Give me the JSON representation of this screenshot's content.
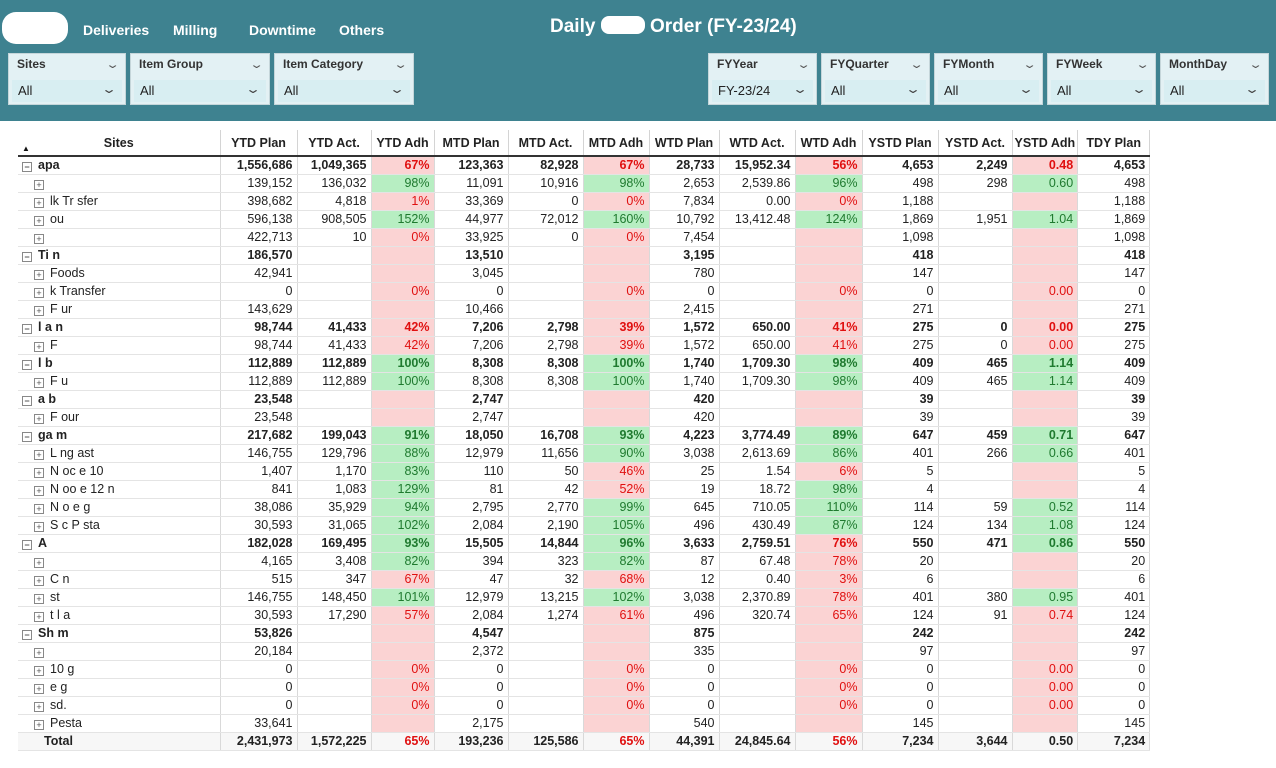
{
  "nav": {
    "deliveries": "Deliveries",
    "milling": "Milling",
    "downtime": "Downtime",
    "others": "Others"
  },
  "title": {
    "left": "Daily ",
    "right": " Order (FY-23/24)"
  },
  "slicers": {
    "sites": {
      "label": "Sites",
      "value": "All"
    },
    "item_group": {
      "label": "Item Group",
      "value": "All"
    },
    "item_category": {
      "label": "Item Category",
      "value": "All"
    },
    "fy_year": {
      "label": "FYYear",
      "value": "FY-23/24"
    },
    "fy_quarter": {
      "label": "FYQuarter",
      "value": "All"
    },
    "fy_month": {
      "label": "FYMonth",
      "value": "All"
    },
    "fy_week": {
      "label": "FYWeek",
      "value": "All"
    },
    "month_day": {
      "label": "MonthDay",
      "value": "All"
    }
  },
  "table": {
    "columns": [
      "Sites",
      "YTD Plan",
      "YTD Act.",
      "YTD Adh",
      "MTD Plan",
      "MTD Act.",
      "MTD Adh",
      "WTD Plan",
      "WTD Act.",
      "WTD Adh",
      "YSTD Plan",
      "YSTD Act.",
      "YSTD Adh",
      "TDY Plan"
    ],
    "rows": [
      {
        "level": "parent",
        "label": "  apa",
        "c": [
          "1,556,686",
          "1,049,365",
          "67%",
          "123,363",
          "82,928",
          "67%",
          "28,733",
          "15,952.34",
          "56%",
          "4,653",
          "2,249",
          "0.48",
          "4,653"
        ],
        "s": [
          "",
          "",
          "red",
          "",
          "",
          "red",
          "",
          "",
          "red",
          "",
          "",
          "pink",
          ""
        ]
      },
      {
        "level": "child",
        "label": "",
        "c": [
          "139,152",
          "136,032",
          "98%",
          "11,091",
          "10,916",
          "98%",
          "2,653",
          "2,539.86",
          "96%",
          "498",
          "298",
          "0.60",
          "498"
        ],
        "s": [
          "",
          "",
          "green",
          "",
          "",
          "green",
          "",
          "",
          "green",
          "",
          "",
          "green",
          ""
        ]
      },
      {
        "level": "child",
        "label": "lk Tr  sfer",
        "c": [
          "398,682",
          "4,818",
          "1%",
          "33,369",
          "0",
          "0%",
          "7,834",
          "0.00",
          "0%",
          "1,188",
          "",
          "",
          "1,188"
        ],
        "s": [
          "",
          "",
          "red",
          "",
          "",
          "red",
          "",
          "",
          "red",
          "",
          "",
          "pink",
          ""
        ]
      },
      {
        "level": "child",
        "label": "  ou",
        "c": [
          "596,138",
          "908,505",
          "152%",
          "44,977",
          "72,012",
          "160%",
          "10,792",
          "13,412.48",
          "124%",
          "1,869",
          "1,951",
          "1.04",
          "1,869"
        ],
        "s": [
          "",
          "",
          "green",
          "",
          "",
          "green",
          "",
          "",
          "green",
          "",
          "",
          "green",
          ""
        ]
      },
      {
        "level": "child",
        "label": "  ",
        "c": [
          "422,713",
          "10",
          "0%",
          "33,925",
          "0",
          "0%",
          "7,454",
          "",
          "",
          "1,098",
          "",
          "",
          "1,098"
        ],
        "s": [
          "",
          "",
          "red",
          "",
          "",
          "red",
          "",
          "",
          "pink",
          "",
          "",
          "pink",
          ""
        ]
      },
      {
        "level": "parent",
        "label": "Ti   n",
        "c": [
          "186,570",
          "",
          "",
          "13,510",
          "",
          "",
          "3,195",
          "",
          "",
          "418",
          "",
          "",
          "418"
        ],
        "s": [
          "",
          "",
          "pink",
          "",
          "",
          "pink",
          "",
          "",
          "pink",
          "",
          "",
          "pink",
          ""
        ]
      },
      {
        "level": "child",
        "label": "Foods",
        "c": [
          "42,941",
          "",
          "",
          "3,045",
          "",
          "",
          "780",
          "",
          "",
          "147",
          "",
          "",
          "147"
        ],
        "s": [
          "",
          "",
          "pink",
          "",
          "",
          "pink",
          "",
          "",
          "pink",
          "",
          "",
          "pink",
          ""
        ]
      },
      {
        "level": "child",
        "label": "  k Transfer",
        "c": [
          "0",
          "",
          "0%",
          "0",
          "",
          "0%",
          "0",
          "",
          "0%",
          "0",
          "",
          "0.00",
          "0"
        ],
        "s": [
          "",
          "",
          "red",
          "",
          "",
          "red",
          "",
          "",
          "red",
          "",
          "",
          "red",
          ""
        ]
      },
      {
        "level": "child",
        "label": "F  ur",
        "c": [
          "143,629",
          "",
          "",
          "10,466",
          "",
          "",
          "2,415",
          "",
          "",
          "271",
          "",
          "",
          "271"
        ],
        "s": [
          "",
          "",
          "pink",
          "",
          "",
          "pink",
          "",
          "",
          "pink",
          "",
          "",
          "pink",
          ""
        ]
      },
      {
        "level": "parent",
        "label": "l  a  n",
        "c": [
          "98,744",
          "41,433",
          "42%",
          "7,206",
          "2,798",
          "39%",
          "1,572",
          "650.00",
          "41%",
          "275",
          "0",
          "0.00",
          "275"
        ],
        "s": [
          "",
          "",
          "red",
          "",
          "",
          "red",
          "",
          "",
          "red",
          "",
          "",
          "pink",
          ""
        ]
      },
      {
        "level": "child",
        "label": "F",
        "c": [
          "98,744",
          "41,433",
          "42%",
          "7,206",
          "2,798",
          "39%",
          "1,572",
          "650.00",
          "41%",
          "275",
          "0",
          "0.00",
          "275"
        ],
        "s": [
          "",
          "",
          "red",
          "",
          "",
          "red",
          "",
          "",
          "red",
          "",
          "",
          "red",
          ""
        ]
      },
      {
        "level": "parent",
        "label": " l  b",
        "c": [
          "112,889",
          "112,889",
          "100%",
          "8,308",
          "8,308",
          "100%",
          "1,740",
          "1,709.30",
          "98%",
          "409",
          "465",
          "1.14",
          "409"
        ],
        "s": [
          "",
          "",
          "green",
          "",
          "",
          "green",
          "",
          "",
          "green",
          "",
          "",
          "green",
          ""
        ]
      },
      {
        "level": "child",
        "label": "F  u",
        "c": [
          "112,889",
          "112,889",
          "100%",
          "8,308",
          "8,308",
          "100%",
          "1,740",
          "1,709.30",
          "98%",
          "409",
          "465",
          "1.14",
          "409"
        ],
        "s": [
          "",
          "",
          "green",
          "",
          "",
          "green",
          "",
          "",
          "green",
          "",
          "",
          "green",
          ""
        ]
      },
      {
        "level": "parent",
        "label": "a  b",
        "c": [
          "23,548",
          "",
          "",
          "2,747",
          "",
          "",
          "420",
          "",
          "",
          "39",
          "",
          "",
          "39"
        ],
        "s": [
          "",
          "",
          "pink",
          "",
          "",
          "pink",
          "",
          "",
          "pink",
          "",
          "",
          "pink",
          ""
        ]
      },
      {
        "level": "child",
        "label": "F  our",
        "c": [
          "23,548",
          "",
          "",
          "2,747",
          "",
          "",
          "420",
          "",
          "",
          "39",
          "",
          "",
          "39"
        ],
        "s": [
          "",
          "",
          "pink",
          "",
          "",
          "pink",
          "",
          "",
          "pink",
          "",
          "",
          "pink",
          ""
        ]
      },
      {
        "level": "parent",
        "label": "ga  m",
        "c": [
          "217,682",
          "199,043",
          "91%",
          "18,050",
          "16,708",
          "93%",
          "4,223",
          "3,774.49",
          "89%",
          "647",
          "459",
          "0.71",
          "647"
        ],
        "s": [
          "",
          "",
          "green",
          "",
          "",
          "green",
          "",
          "",
          "green",
          "",
          "",
          "green",
          ""
        ]
      },
      {
        "level": "child",
        "label": "L  ng  ast",
        "c": [
          "146,755",
          "129,796",
          "88%",
          "12,979",
          "11,656",
          "90%",
          "3,038",
          "2,613.69",
          "86%",
          "401",
          "266",
          "0.66",
          "401"
        ],
        "s": [
          "",
          "",
          "green",
          "",
          "",
          "green",
          "",
          "",
          "green",
          "",
          "",
          "green",
          ""
        ]
      },
      {
        "level": "child",
        "label": "N  oc  e 10",
        "c": [
          "1,407",
          "1,170",
          "83%",
          "110",
          "50",
          "46%",
          "25",
          "1.54",
          "6%",
          "5",
          "",
          "",
          "5"
        ],
        "s": [
          "",
          "",
          "green",
          "",
          "",
          "red",
          "",
          "",
          "red",
          "",
          "",
          "pink",
          ""
        ]
      },
      {
        "level": "child",
        "label": "N  oo  e 12  n",
        "c": [
          "841",
          "1,083",
          "129%",
          "81",
          "42",
          "52%",
          "19",
          "18.72",
          "98%",
          "4",
          "",
          "",
          "4"
        ],
        "s": [
          "",
          "",
          "green",
          "",
          "",
          "red",
          "",
          "",
          "green",
          "",
          "",
          "pink",
          ""
        ]
      },
      {
        "level": "child",
        "label": "N  o  e  g",
        "c": [
          "38,086",
          "35,929",
          "94%",
          "2,795",
          "2,770",
          "99%",
          "645",
          "710.05",
          "110%",
          "114",
          "59",
          "0.52",
          "114"
        ],
        "s": [
          "",
          "",
          "green",
          "",
          "",
          "green",
          "",
          "",
          "green",
          "",
          "",
          "green",
          ""
        ]
      },
      {
        "level": "child",
        "label": "S  c  P  sta",
        "c": [
          "30,593",
          "31,065",
          "102%",
          "2,084",
          "2,190",
          "105%",
          "496",
          "430.49",
          "87%",
          "124",
          "134",
          "1.08",
          "124"
        ],
        "s": [
          "",
          "",
          "green",
          "",
          "",
          "green",
          "",
          "",
          "green",
          "",
          "",
          "green",
          ""
        ]
      },
      {
        "level": "parent",
        "label": "A",
        "c": [
          "182,028",
          "169,495",
          "93%",
          "15,505",
          "14,844",
          "96%",
          "3,633",
          "2,759.51",
          "76%",
          "550",
          "471",
          "0.86",
          "550"
        ],
        "s": [
          "",
          "",
          "green",
          "",
          "",
          "green",
          "",
          "",
          "red",
          "",
          "",
          "green",
          ""
        ]
      },
      {
        "level": "child",
        "label": "",
        "c": [
          "4,165",
          "3,408",
          "82%",
          "394",
          "323",
          "82%",
          "87",
          "67.48",
          "78%",
          "20",
          "",
          "",
          "20"
        ],
        "s": [
          "",
          "",
          "green",
          "",
          "",
          "green",
          "",
          "",
          "red",
          "",
          "",
          "pink",
          ""
        ]
      },
      {
        "level": "child",
        "label": "C  n",
        "c": [
          "515",
          "347",
          "67%",
          "47",
          "32",
          "68%",
          "12",
          "0.40",
          "3%",
          "6",
          "",
          "",
          "6"
        ],
        "s": [
          "",
          "",
          "red",
          "",
          "",
          "red",
          "",
          "",
          "red",
          "",
          "",
          "pink",
          ""
        ]
      },
      {
        "level": "child",
        "label": "  st",
        "c": [
          "146,755",
          "148,450",
          "101%",
          "12,979",
          "13,215",
          "102%",
          "3,038",
          "2,370.89",
          "78%",
          "401",
          "380",
          "0.95",
          "401"
        ],
        "s": [
          "",
          "",
          "green",
          "",
          "",
          "green",
          "",
          "",
          "red",
          "",
          "",
          "green",
          ""
        ]
      },
      {
        "level": "child",
        "label": "t l  a",
        "c": [
          "30,593",
          "17,290",
          "57%",
          "2,084",
          "1,274",
          "61%",
          "496",
          "320.74",
          "65%",
          "124",
          "91",
          "0.74",
          "124"
        ],
        "s": [
          "",
          "",
          "red",
          "",
          "",
          "red",
          "",
          "",
          "red",
          "",
          "",
          "red",
          ""
        ]
      },
      {
        "level": "parent",
        "label": "Sh  m",
        "c": [
          "53,826",
          "",
          "",
          "4,547",
          "",
          "",
          "875",
          "",
          "",
          "242",
          "",
          "",
          "242"
        ],
        "s": [
          "",
          "",
          "pink",
          "",
          "",
          "pink",
          "",
          "",
          "pink",
          "",
          "",
          "pink",
          ""
        ]
      },
      {
        "level": "child",
        "label": "",
        "c": [
          "20,184",
          "",
          "",
          "2,372",
          "",
          "",
          "335",
          "",
          "",
          "97",
          "",
          "",
          "97"
        ],
        "s": [
          "",
          "",
          "pink",
          "",
          "",
          "pink",
          "",
          "",
          "pink",
          "",
          "",
          "pink",
          ""
        ]
      },
      {
        "level": "child",
        "label": "10  g",
        "c": [
          "0",
          "",
          "0%",
          "0",
          "",
          "0%",
          "0",
          "",
          "0%",
          "0",
          "",
          "0.00",
          "0"
        ],
        "s": [
          "",
          "",
          "red",
          "",
          "",
          "red",
          "",
          "",
          "red",
          "",
          "",
          "red",
          ""
        ]
      },
      {
        "level": "child",
        "label": "e  g",
        "c": [
          "0",
          "",
          "0%",
          "0",
          "",
          "0%",
          "0",
          "",
          "0%",
          "0",
          "",
          "0.00",
          "0"
        ],
        "s": [
          "",
          "",
          "red",
          "",
          "",
          "red",
          "",
          "",
          "red",
          "",
          "",
          "red",
          ""
        ]
      },
      {
        "level": "child",
        "label": "sd.",
        "c": [
          "0",
          "",
          "0%",
          "0",
          "",
          "0%",
          "0",
          "",
          "0%",
          "0",
          "",
          "0.00",
          "0"
        ],
        "s": [
          "",
          "",
          "red",
          "",
          "",
          "red",
          "",
          "",
          "red",
          "",
          "",
          "red",
          ""
        ]
      },
      {
        "level": "child",
        "label": "Pesta",
        "c": [
          "33,641",
          "",
          "",
          "2,175",
          "",
          "",
          "540",
          "",
          "",
          "145",
          "",
          "",
          "145"
        ],
        "s": [
          "",
          "",
          "pink",
          "",
          "",
          "pink",
          "",
          "",
          "pink",
          "",
          "",
          "pink",
          ""
        ]
      }
    ],
    "total": {
      "label": "Total",
      "c": [
        "2,431,973",
        "1,572,225",
        "65%",
        "193,236",
        "125,586",
        "65%",
        "44,391",
        "24,845.64",
        "56%",
        "7,234",
        "3,644",
        "0.50",
        "7,234"
      ],
      "s": [
        "",
        "",
        "redtxt",
        "",
        "",
        "redtxt",
        "",
        "",
        "redtxt",
        "",
        "",
        "",
        ""
      ]
    }
  },
  "colors": {
    "banner": "#3e8290",
    "slicer_bg": "#e3f1f4",
    "good": "#b7eec2",
    "bad": "#fbd3d3",
    "bad_text": "#e01010"
  }
}
